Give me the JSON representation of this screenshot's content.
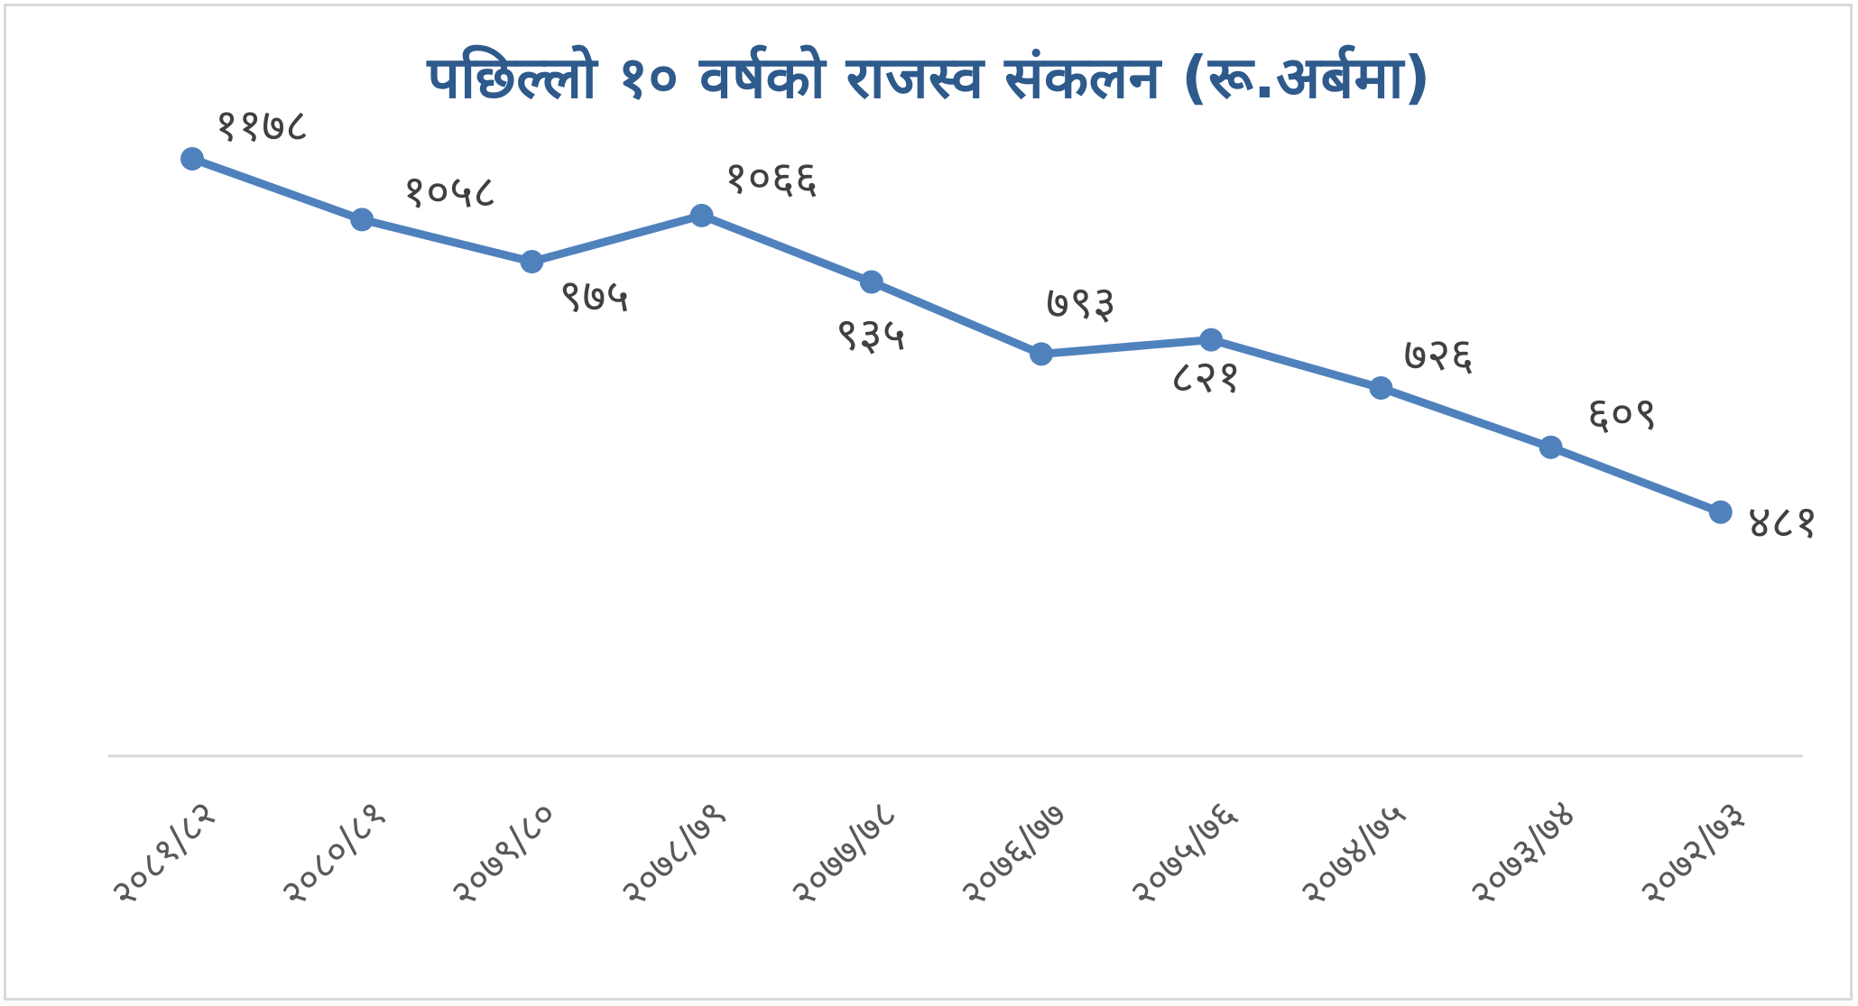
{
  "chart_data": {
    "type": "line",
    "title": "पछिल्लो १० वर्षको राजस्व संकलन (रू.अर्बमा)",
    "categories": [
      "२०८१/८२",
      "२०८०/८१",
      "२०७९/८०",
      "२०७८/७९",
      "२०७७/७८",
      "२०७६/७७",
      "२०७५/७६",
      "२०७४/७५",
      "२०७३/७४",
      "२०७२/७३"
    ],
    "values": [
      1178,
      1058,
      975,
      1066,
      935,
      793,
      821,
      726,
      609,
      481
    ],
    "data_labels": [
      "११७८",
      "१०५८",
      "९७५",
      "१०६६",
      "९३५",
      "७९३",
      "८२१",
      "७२६",
      "६०९",
      "४८१"
    ],
    "ylim": [
      0,
      1400
    ],
    "colors": {
      "line": "#4f81bd",
      "title": "#2e5a8c",
      "axis": "#d9d9d9"
    },
    "grid": false,
    "legend": "none"
  }
}
